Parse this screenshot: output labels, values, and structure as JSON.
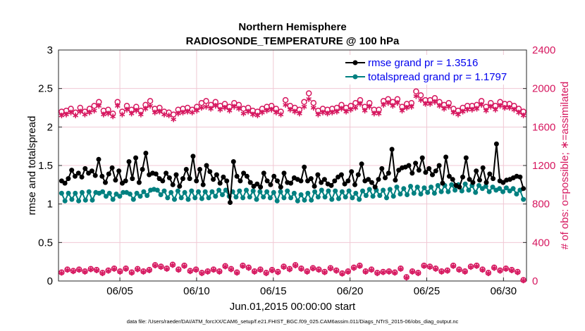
{
  "chart_data": {
    "type": "line",
    "title_line1": "Northern Hemisphere",
    "title_line2": "RADIOSONDE_TEMPERATURE @ 100 hPa",
    "xlabel": "Jun.01,2015 00:00:00 start",
    "ylabel_left": "rmse and totalspread",
    "ylabel_right": "# of obs: o=possible; ∗=assimilated",
    "xlim": [
      1,
      31.5
    ],
    "ylim_left": [
      0,
      3
    ],
    "ylim_right": [
      0,
      2400
    ],
    "x_ticks": [
      5,
      10,
      15,
      20,
      25,
      30
    ],
    "x_tick_labels": [
      "06/05",
      "06/10",
      "06/15",
      "06/20",
      "06/25",
      "06/30"
    ],
    "y_ticks_left": [
      0,
      0.5,
      1,
      1.5,
      2,
      2.5,
      3
    ],
    "y_tick_labels_left": [
      "0",
      "0.5",
      "1",
      "1.5",
      "2",
      "2.5",
      "3"
    ],
    "y_ticks_right": [
      0,
      400,
      800,
      1200,
      1600,
      2000,
      2400
    ],
    "y_tick_labels_right": [
      "0",
      "400",
      "800",
      "1200",
      "1600",
      "2000",
      "2400"
    ],
    "grid": true,
    "legend_position": "top-right",
    "legend": [
      {
        "label": "rmse grand pr = 1.3516",
        "color": "#000000"
      },
      {
        "label": "totalspread grand pr = 1.1797",
        "color": "#008080"
      }
    ],
    "colors": {
      "rmse": "#000000",
      "spread": "#008080",
      "obs": "#d6175f",
      "grid": "#f0c8d4"
    },
    "series": [
      {
        "name": "rmse",
        "axis": "left",
        "values": [
          1.3,
          1.27,
          1.33,
          1.44,
          1.36,
          1.4,
          1.35,
          1.46,
          1.4,
          1.43,
          1.37,
          1.58,
          1.36,
          1.28,
          1.39,
          1.47,
          1.31,
          1.43,
          1.27,
          1.3,
          1.55,
          1.33,
          1.6,
          1.28,
          1.45,
          1.66,
          1.38,
          1.4,
          1.39,
          1.33,
          1.3,
          1.4,
          1.34,
          1.25,
          1.38,
          1.23,
          1.33,
          1.45,
          1.33,
          1.62,
          1.3,
          1.45,
          1.25,
          1.5,
          1.42,
          1.32,
          1.38,
          1.27,
          1.35,
          1.3,
          1.02,
          1.55,
          1.36,
          1.3,
          1.4,
          1.36,
          1.28,
          1.23,
          1.26,
          1.22,
          1.4,
          1.3,
          1.25,
          1.36,
          1.3,
          1.22,
          1.4,
          1.28,
          1.27,
          1.34,
          1.32,
          1.3,
          1.48,
          1.3,
          1.33,
          1.23,
          1.38,
          1.28,
          1.32,
          1.26,
          1.24,
          1.3,
          1.35,
          1.38,
          1.26,
          1.3,
          1.42,
          1.25,
          1.38,
          1.52,
          1.3,
          1.32,
          1.28,
          1.22,
          1.32,
          1.46,
          1.34,
          1.4,
          1.71,
          1.31,
          1.44,
          1.47,
          1.48,
          1.5,
          1.4,
          1.53,
          1.44,
          1.6,
          1.41,
          1.46,
          1.38,
          1.43,
          1.5,
          1.27,
          1.61,
          1.36,
          1.32,
          1.24,
          1.22,
          1.35,
          1.6,
          1.32,
          1.28,
          1.43,
          1.31,
          1.47,
          1.28,
          1.39,
          1.33,
          1.78,
          1.3,
          1.28,
          1.31,
          1.32,
          1.34,
          1.36,
          1.35,
          1.2
        ]
      },
      {
        "name": "totalspread",
        "axis": "left",
        "values": [
          1.14,
          1.04,
          1.14,
          1.06,
          1.14,
          1.04,
          1.15,
          1.05,
          1.16,
          1.05,
          1.15,
          1.14,
          1.16,
          1.1,
          1.14,
          1.06,
          1.13,
          1.1,
          1.15,
          1.15,
          1.13,
          1.06,
          1.14,
          1.1,
          1.16,
          1.11,
          1.18,
          1.19,
          1.18,
          1.12,
          1.17,
          1.08,
          1.15,
          1.06,
          1.17,
          1.08,
          1.15,
          1.06,
          1.17,
          1.08,
          1.16,
          1.07,
          1.16,
          1.08,
          1.16,
          1.1,
          1.18,
          1.12,
          1.18,
          1.1,
          1.16,
          1.09,
          1.17,
          1.08,
          1.18,
          1.09,
          1.17,
          1.06,
          1.16,
          1.09,
          1.16,
          1.08,
          1.15,
          1.04,
          1.16,
          1.08,
          1.17,
          1.08,
          1.14,
          1.04,
          1.12,
          1.05,
          1.14,
          1.05,
          1.16,
          1.09,
          1.18,
          1.09,
          1.17,
          1.06,
          1.17,
          1.07,
          1.16,
          1.09,
          1.17,
          1.08,
          1.14,
          1.06,
          1.17,
          1.11,
          1.19,
          1.1,
          1.18,
          1.11,
          1.18,
          1.08,
          1.19,
          1.1,
          1.22,
          1.13,
          1.2,
          1.12,
          1.23,
          1.14,
          1.22,
          1.13,
          1.21,
          1.15,
          1.22,
          1.14,
          1.24,
          1.16,
          1.24,
          1.16,
          1.25,
          1.18,
          1.25,
          1.17,
          1.26,
          1.18,
          1.24,
          1.15,
          1.24,
          1.2,
          1.23,
          1.16,
          1.22,
          1.18,
          1.2,
          1.16,
          1.21,
          1.17,
          1.2,
          1.13,
          1.18,
          1.06
        ]
      },
      {
        "name": "obs possible (o)",
        "axis": "right",
        "values": [
          1760,
          1770,
          1790,
          1750,
          1800,
          1760,
          1790,
          1820,
          1860,
          1770,
          1780,
          1740,
          1860,
          1760,
          1820,
          1780,
          1810,
          1770,
          1830,
          1870,
          1790,
          1800,
          1760,
          1750,
          1730,
          1780,
          1790,
          1800,
          1780,
          1810,
          1850,
          1870,
          1830,
          1860,
          1820,
          1840,
          1810,
          1850,
          1830,
          1790,
          1800,
          1770,
          1760,
          1790,
          1810,
          1820,
          1790,
          1760,
          1880,
          1820,
          1800,
          1780,
          1860,
          1950,
          1850,
          1770,
          1790,
          1780,
          1790,
          1800,
          1830,
          1800,
          1820,
          1850,
          1880,
          1810,
          1850,
          1780,
          1780,
          1870,
          1890,
          1860,
          1890,
          1810,
          1840,
          1850,
          1970,
          1930,
          1880,
          1880,
          1900,
          1860,
          1830,
          1850,
          1790,
          1770,
          1800,
          1820,
          1820,
          1830,
          1870,
          1810,
          1850,
          1820,
          1860,
          1840,
          1840,
          1820,
          1790,
          1760
        ]
      },
      {
        "name": "obs assimilated (*)",
        "axis": "right",
        "values": [
          1720,
          1730,
          1750,
          1720,
          1760,
          1730,
          1750,
          1770,
          1820,
          1730,
          1740,
          1710,
          1820,
          1730,
          1780,
          1740,
          1770,
          1730,
          1790,
          1820,
          1750,
          1760,
          1730,
          1720,
          1680,
          1740,
          1750,
          1760,
          1750,
          1770,
          1800,
          1810,
          1790,
          1820,
          1780,
          1800,
          1770,
          1810,
          1790,
          1740,
          1760,
          1730,
          1720,
          1750,
          1770,
          1780,
          1750,
          1730,
          1830,
          1780,
          1760,
          1740,
          1810,
          1890,
          1800,
          1730,
          1750,
          1740,
          1750,
          1760,
          1790,
          1760,
          1780,
          1800,
          1840,
          1770,
          1810,
          1740,
          1740,
          1830,
          1850,
          1820,
          1850,
          1770,
          1800,
          1810,
          1920,
          1880,
          1840,
          1840,
          1860,
          1820,
          1790,
          1810,
          1750,
          1730,
          1760,
          1780,
          1780,
          1790,
          1830,
          1770,
          1810,
          1780,
          1820,
          1800,
          1800,
          1780,
          1750,
          1720
        ]
      },
      {
        "name": "obs low possible (o)",
        "axis": "right",
        "values": [
          90,
          120,
          105,
          120,
          100,
          125,
          115,
          85,
          110,
          130,
          100,
          130,
          90,
          125,
          100,
          115,
          165,
          150,
          130,
          170,
          120,
          160,
          105,
          120,
          85,
          100,
          120,
          100,
          155,
          125,
          90,
          160,
          140,
          100,
          120,
          85,
          115,
          95,
          150,
          125,
          165,
          130,
          100,
          135,
          120,
          95,
          135,
          110,
          80,
          100,
          140,
          160,
          100,
          120,
          85,
          95,
          100,
          90,
          130,
          40,
          100,
          85,
          160,
          150,
          130,
          100,
          110,
          160,
          120,
          100,
          150,
          160,
          120,
          85,
          140,
          110,
          130,
          115,
          95,
          10
        ]
      },
      {
        "name": "obs low assimilated (*)",
        "axis": "right",
        "values": [
          85,
          115,
          100,
          115,
          95,
          120,
          110,
          80,
          105,
          125,
          95,
          125,
          85,
          120,
          95,
          110,
          160,
          145,
          125,
          165,
          115,
          155,
          100,
          115,
          80,
          95,
          115,
          95,
          150,
          120,
          85,
          155,
          135,
          95,
          115,
          80,
          110,
          90,
          145,
          120,
          160,
          125,
          95,
          130,
          115,
          90,
          130,
          105,
          75,
          95,
          135,
          155,
          95,
          115,
          80,
          90,
          95,
          85,
          125,
          35,
          95,
          80,
          155,
          145,
          125,
          95,
          105,
          155,
          115,
          95,
          145,
          155,
          115,
          80,
          135,
          105,
          125,
          110,
          90,
          5
        ]
      }
    ]
  },
  "footnote": "data file: /Users/raeder/DAI/ATM_forcXX/CAM6_setup/f.e21.FHIST_BGC.f09_025.CAM6assim.011/Diags_NTrS_2015-06/obs_diag_output.nc"
}
